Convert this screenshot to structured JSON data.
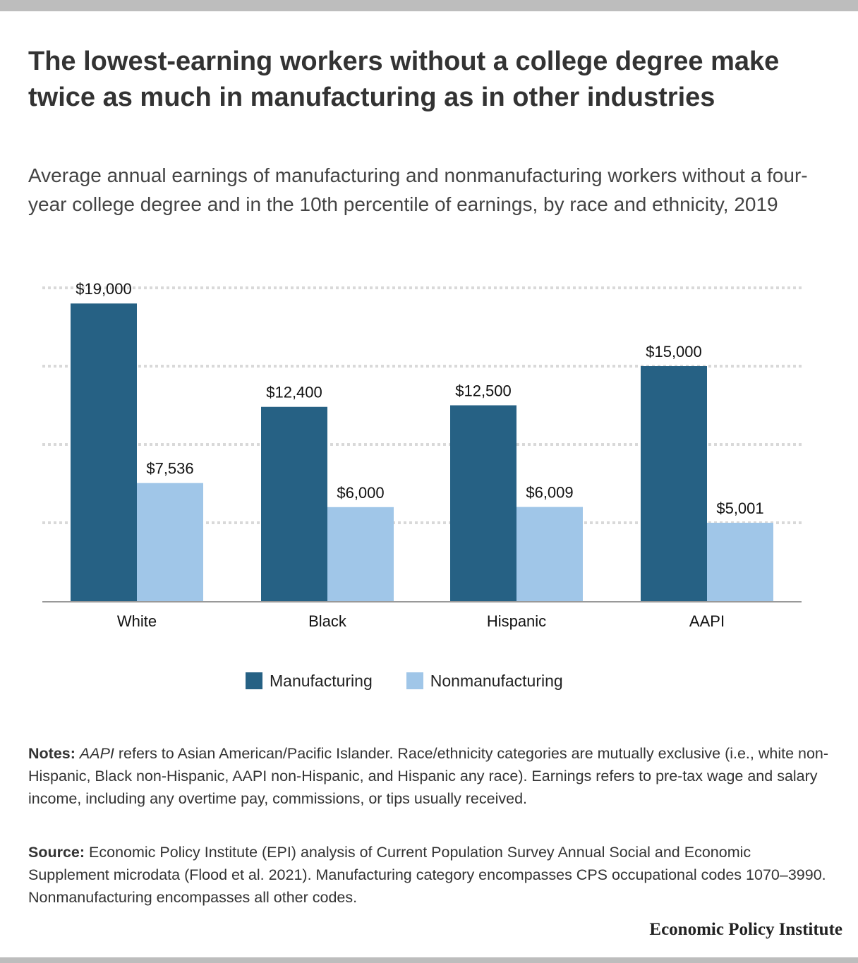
{
  "title": "The lowest-earning workers without a college degree make twice as much in manufacturing as in other industries",
  "subtitle": "Average annual earnings of manufacturing and nonmanufacturing workers without a four-year college degree and in the 10th percentile of earnings, by race and ethnicity, 2019",
  "colors": {
    "manufacturing": "#266184",
    "nonmanufacturing": "#a0c6e8",
    "grid": "#d9d9d9",
    "axis": "#999999"
  },
  "chart_data": {
    "type": "bar",
    "categories": [
      "White",
      "Black",
      "Hispanic",
      "AAPI"
    ],
    "series": [
      {
        "name": "Manufacturing",
        "values": [
          19000,
          12400,
          12500,
          15000
        ],
        "labels": [
          "$19,000",
          "$12,400",
          "$12,500",
          "$15,000"
        ]
      },
      {
        "name": "Nonmanufacturing",
        "values": [
          7536,
          6000,
          6009,
          5001
        ],
        "labels": [
          "$7,536",
          "$6,000",
          "$6,009",
          "$5,001"
        ]
      }
    ],
    "ylim": [
      0,
      20000
    ],
    "gridlines": [
      5000,
      10000,
      15000,
      20000
    ],
    "legend_position": "bottom-center",
    "grid": true
  },
  "legend": {
    "items": [
      "Manufacturing",
      "Nonmanufacturing"
    ]
  },
  "notes": {
    "label": "Notes:",
    "term": "AAPI",
    "text": " refers to Asian American/Pacific Islander. Race/ethnicity categories are mutually exclusive (i.e., white non-Hispanic, Black non-Hispanic, AAPI non-Hispanic, and Hispanic any race). Earnings refers to pre-tax wage and salary income, including any overtime pay, commissions, or tips usually received."
  },
  "source": {
    "label": "Source:",
    "text": " Economic Policy Institute (EPI) analysis of Current Population Survey Annual Social and Economic Supplement microdata (Flood et al. 2021). Manufacturing category encompasses CPS occupational codes 1070–3990. Nonmanufacturing encompasses all other codes."
  },
  "brand": "Economic Policy Institute"
}
